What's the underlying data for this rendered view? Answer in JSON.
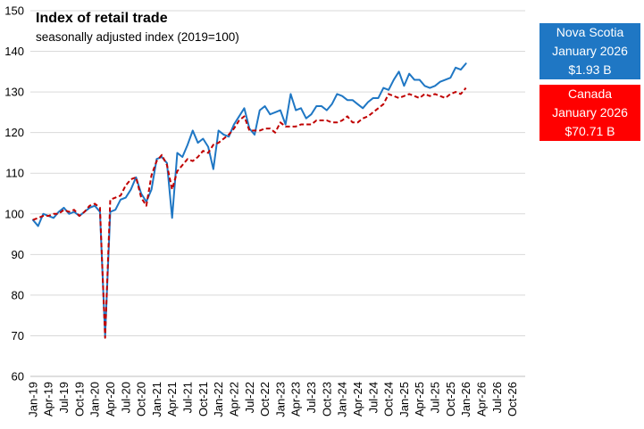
{
  "chart_data": {
    "type": "line",
    "title": "Index of retail trade",
    "subtitle": "seasonally adjusted index (2019=100)",
    "xlabel": "",
    "ylabel": "",
    "ylim": [
      60,
      150
    ],
    "yticks": [
      60,
      70,
      80,
      90,
      100,
      110,
      120,
      130,
      140,
      150
    ],
    "x_tick_labels": [
      "Jan-19",
      "Apr-19",
      "Jul-19",
      "Oct-19",
      "Jan-20",
      "Apr-20",
      "Jul-20",
      "Oct-20",
      "Jan-21",
      "Apr-21",
      "Jul-21",
      "Oct-21",
      "Jan-22",
      "Apr-22",
      "Jul-22",
      "Oct-22",
      "Jan-23",
      "Apr-23",
      "Jul-23",
      "Oct-23",
      "Jan-24",
      "Apr-24",
      "Jul-24",
      "Oct-24",
      "Jan-25",
      "Apr-25",
      "Jul-25",
      "Oct-25",
      "Jan-26",
      "Apr-26",
      "Jul-26",
      "Oct-26"
    ],
    "x_start": "Jan-19",
    "x_months_total": 96,
    "gridlines": "horizontal",
    "series": [
      {
        "name": "Nova Scotia",
        "color": "#1f77c4",
        "style": "solid",
        "values": [
          98.5,
          97,
          100,
          99.5,
          99,
          100.5,
          101.5,
          100,
          100.5,
          99.5,
          100.5,
          101.5,
          102,
          100.5,
          70,
          100.5,
          101,
          103.5,
          104,
          106,
          109,
          105,
          103,
          106,
          113.5,
          114,
          112.5,
          99,
          115,
          114,
          117,
          120.5,
          117.5,
          118.5,
          116.5,
          111,
          120.5,
          119.5,
          119,
          122,
          124,
          126,
          121,
          119.5,
          125.5,
          126.5,
          124.5,
          125,
          125.5,
          122,
          129.5,
          125.5,
          126,
          123.5,
          124.5,
          126.5,
          126.5,
          125.5,
          127,
          129.5,
          129,
          128,
          128,
          127,
          126,
          127.5,
          128.5,
          128.5,
          131,
          130.5,
          133,
          135,
          131.5,
          134.5,
          133,
          133,
          131.5,
          131,
          131.5,
          132.5,
          133,
          133.5,
          136,
          135.5,
          137
        ]
      },
      {
        "name": "Canada",
        "color": "#c00000",
        "style": "dashed",
        "values": [
          98.5,
          99,
          99.5,
          99.5,
          100,
          100,
          101,
          100.5,
          101,
          99.5,
          100.5,
          102,
          102.5,
          101.5,
          69.5,
          103.5,
          104,
          104.5,
          107,
          108.5,
          109,
          104,
          102,
          109.5,
          113,
          114.5,
          112,
          106,
          110.5,
          112,
          113.5,
          113,
          114,
          115.5,
          115,
          117,
          117.5,
          118.5,
          119.5,
          121,
          123,
          124,
          120.5,
          120.5,
          120.5,
          121,
          121,
          120,
          122.5,
          121.5,
          121.5,
          121.5,
          122,
          122,
          122,
          123,
          123,
          123,
          122.5,
          122.5,
          123,
          124,
          122.5,
          122.5,
          123.5,
          124,
          125,
          126,
          127,
          129.5,
          129,
          128.5,
          129,
          129.5,
          129,
          128.5,
          129.5,
          129,
          129.5,
          129,
          128.5,
          129.5,
          130,
          129.5,
          131
        ]
      }
    ]
  },
  "legend": {
    "nova_scotia": {
      "line1": "Nova Scotia",
      "line2": "January 2026",
      "line3": "$1.93 B",
      "bg_color": "#1f77c4"
    },
    "canada": {
      "line1": "Canada",
      "line2": "January 2026",
      "line3": "$70.71 B",
      "bg_color": "#ff0000"
    }
  }
}
